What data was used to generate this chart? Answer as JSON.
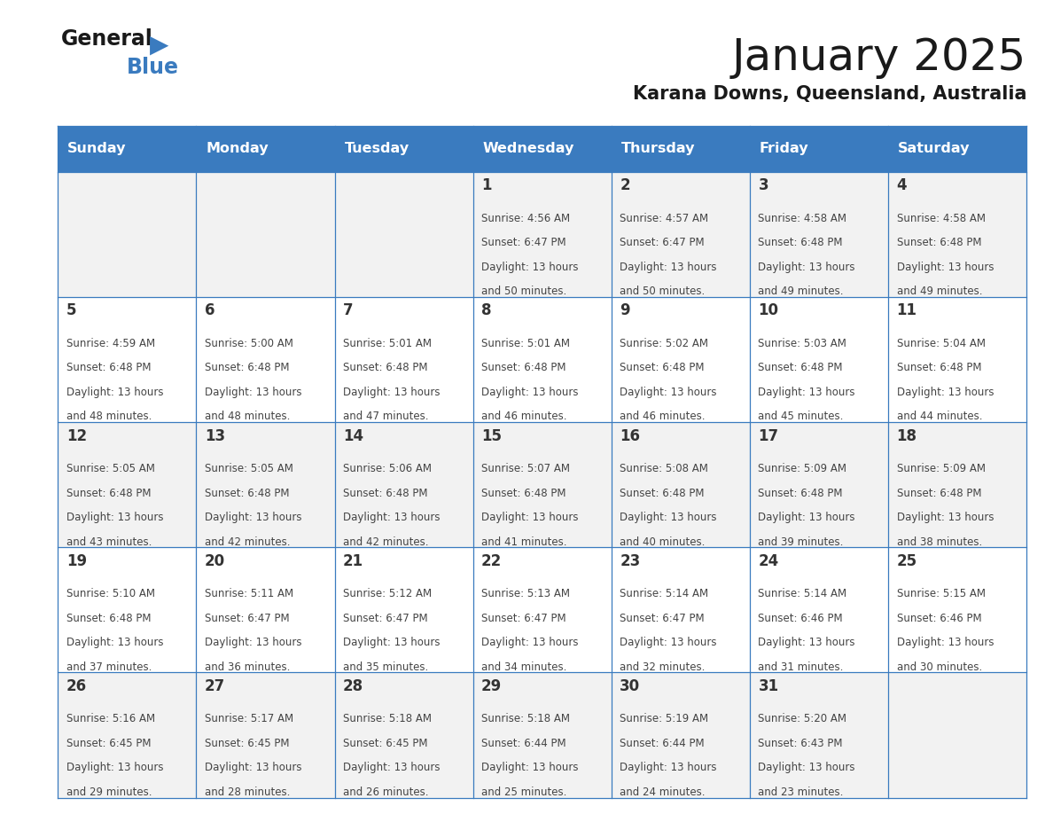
{
  "title": "January 2025",
  "subtitle": "Karana Downs, Queensland, Australia",
  "days_of_week": [
    "Sunday",
    "Monday",
    "Tuesday",
    "Wednesday",
    "Thursday",
    "Friday",
    "Saturday"
  ],
  "header_bg": "#3a7bbf",
  "header_text": "#ffffff",
  "row_bg_odd": "#f2f2f2",
  "row_bg_even": "#ffffff",
  "cell_border": "#3a7bbf",
  "day_number_color": "#333333",
  "info_text_color": "#444444",
  "calendar_data": [
    [
      null,
      null,
      null,
      {
        "day": 1,
        "sunrise": "4:56 AM",
        "sunset": "6:47 PM",
        "daylight": "13 hours and 50 minutes."
      },
      {
        "day": 2,
        "sunrise": "4:57 AM",
        "sunset": "6:47 PM",
        "daylight": "13 hours and 50 minutes."
      },
      {
        "day": 3,
        "sunrise": "4:58 AM",
        "sunset": "6:48 PM",
        "daylight": "13 hours and 49 minutes."
      },
      {
        "day": 4,
        "sunrise": "4:58 AM",
        "sunset": "6:48 PM",
        "daylight": "13 hours and 49 minutes."
      }
    ],
    [
      {
        "day": 5,
        "sunrise": "4:59 AM",
        "sunset": "6:48 PM",
        "daylight": "13 hours and 48 minutes."
      },
      {
        "day": 6,
        "sunrise": "5:00 AM",
        "sunset": "6:48 PM",
        "daylight": "13 hours and 48 minutes."
      },
      {
        "day": 7,
        "sunrise": "5:01 AM",
        "sunset": "6:48 PM",
        "daylight": "13 hours and 47 minutes."
      },
      {
        "day": 8,
        "sunrise": "5:01 AM",
        "sunset": "6:48 PM",
        "daylight": "13 hours and 46 minutes."
      },
      {
        "day": 9,
        "sunrise": "5:02 AM",
        "sunset": "6:48 PM",
        "daylight": "13 hours and 46 minutes."
      },
      {
        "day": 10,
        "sunrise": "5:03 AM",
        "sunset": "6:48 PM",
        "daylight": "13 hours and 45 minutes."
      },
      {
        "day": 11,
        "sunrise": "5:04 AM",
        "sunset": "6:48 PM",
        "daylight": "13 hours and 44 minutes."
      }
    ],
    [
      {
        "day": 12,
        "sunrise": "5:05 AM",
        "sunset": "6:48 PM",
        "daylight": "13 hours and 43 minutes."
      },
      {
        "day": 13,
        "sunrise": "5:05 AM",
        "sunset": "6:48 PM",
        "daylight": "13 hours and 42 minutes."
      },
      {
        "day": 14,
        "sunrise": "5:06 AM",
        "sunset": "6:48 PM",
        "daylight": "13 hours and 42 minutes."
      },
      {
        "day": 15,
        "sunrise": "5:07 AM",
        "sunset": "6:48 PM",
        "daylight": "13 hours and 41 minutes."
      },
      {
        "day": 16,
        "sunrise": "5:08 AM",
        "sunset": "6:48 PM",
        "daylight": "13 hours and 40 minutes."
      },
      {
        "day": 17,
        "sunrise": "5:09 AM",
        "sunset": "6:48 PM",
        "daylight": "13 hours and 39 minutes."
      },
      {
        "day": 18,
        "sunrise": "5:09 AM",
        "sunset": "6:48 PM",
        "daylight": "13 hours and 38 minutes."
      }
    ],
    [
      {
        "day": 19,
        "sunrise": "5:10 AM",
        "sunset": "6:48 PM",
        "daylight": "13 hours and 37 minutes."
      },
      {
        "day": 20,
        "sunrise": "5:11 AM",
        "sunset": "6:47 PM",
        "daylight": "13 hours and 36 minutes."
      },
      {
        "day": 21,
        "sunrise": "5:12 AM",
        "sunset": "6:47 PM",
        "daylight": "13 hours and 35 minutes."
      },
      {
        "day": 22,
        "sunrise": "5:13 AM",
        "sunset": "6:47 PM",
        "daylight": "13 hours and 34 minutes."
      },
      {
        "day": 23,
        "sunrise": "5:14 AM",
        "sunset": "6:47 PM",
        "daylight": "13 hours and 32 minutes."
      },
      {
        "day": 24,
        "sunrise": "5:14 AM",
        "sunset": "6:46 PM",
        "daylight": "13 hours and 31 minutes."
      },
      {
        "day": 25,
        "sunrise": "5:15 AM",
        "sunset": "6:46 PM",
        "daylight": "13 hours and 30 minutes."
      }
    ],
    [
      {
        "day": 26,
        "sunrise": "5:16 AM",
        "sunset": "6:45 PM",
        "daylight": "13 hours and 29 minutes."
      },
      {
        "day": 27,
        "sunrise": "5:17 AM",
        "sunset": "6:45 PM",
        "daylight": "13 hours and 28 minutes."
      },
      {
        "day": 28,
        "sunrise": "5:18 AM",
        "sunset": "6:45 PM",
        "daylight": "13 hours and 26 minutes."
      },
      {
        "day": 29,
        "sunrise": "5:18 AM",
        "sunset": "6:44 PM",
        "daylight": "13 hours and 25 minutes."
      },
      {
        "day": 30,
        "sunrise": "5:19 AM",
        "sunset": "6:44 PM",
        "daylight": "13 hours and 24 minutes."
      },
      {
        "day": 31,
        "sunrise": "5:20 AM",
        "sunset": "6:43 PM",
        "daylight": "13 hours and 23 minutes."
      },
      null
    ]
  ]
}
